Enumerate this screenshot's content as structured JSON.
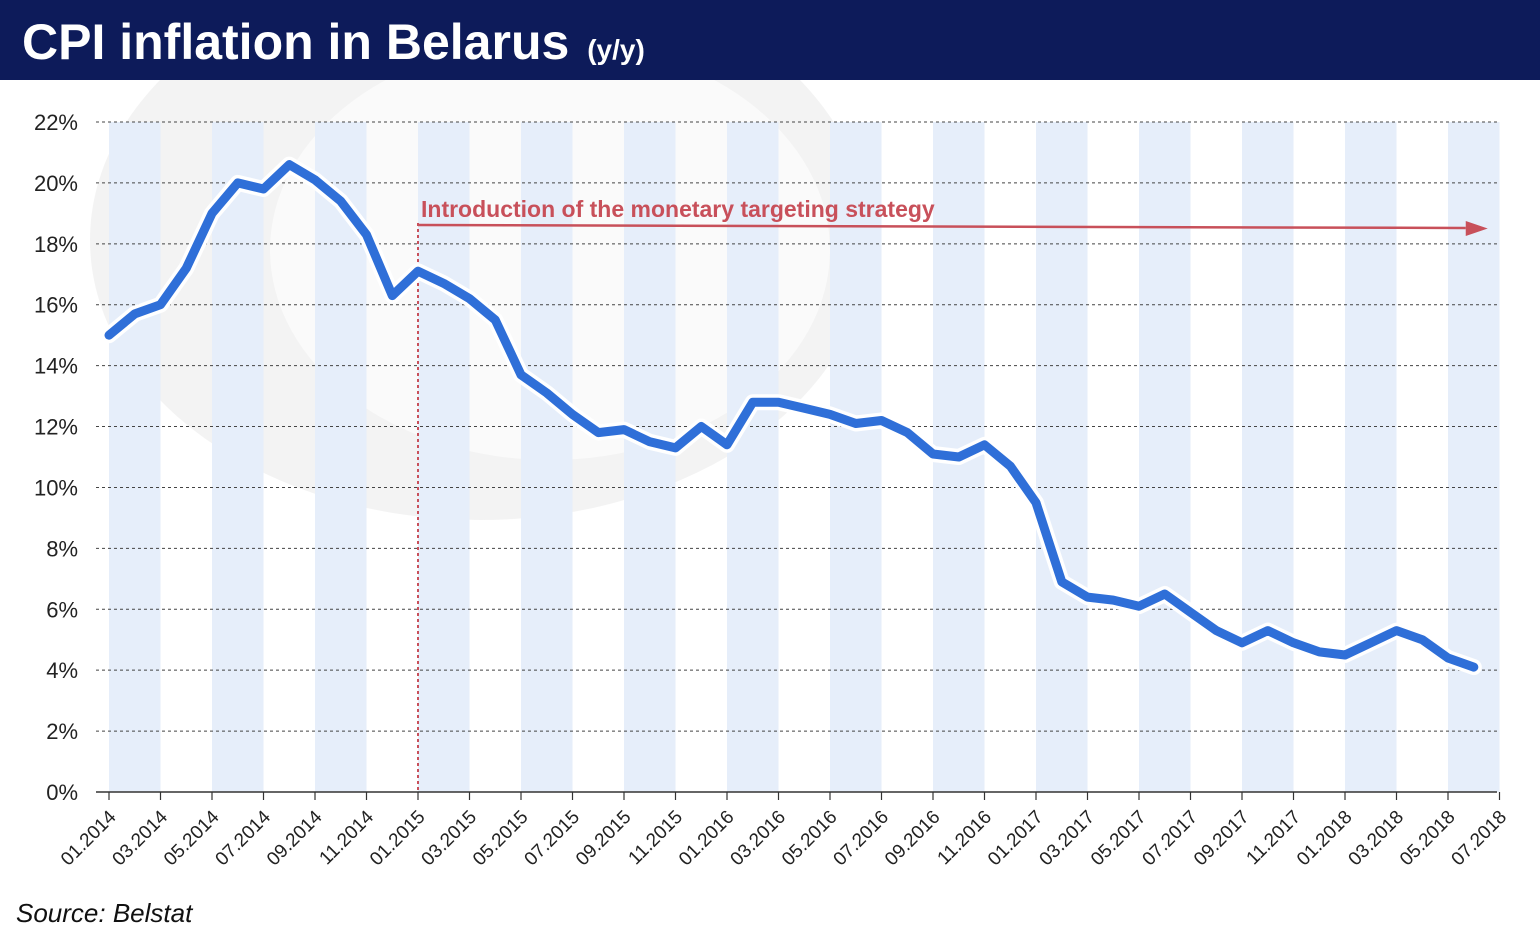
{
  "header": {
    "title": "CPI inflation in Belarus",
    "subtitle": "(y/y)"
  },
  "source": "Source: Belstat",
  "colors": {
    "header_bg": "#0d1b5a",
    "line": "#2f6fd8",
    "annotation": "#c8505a",
    "band": "#e6eefa"
  },
  "chart_data": {
    "type": "line",
    "title": "CPI inflation in Belarus",
    "subtitle": "(y/y)",
    "xlabel": "",
    "ylabel": "",
    "ylim": [
      0,
      22
    ],
    "y_ticks": [
      "0%",
      "2%",
      "4%",
      "6%",
      "8%",
      "10%",
      "12%",
      "14%",
      "16%",
      "18%",
      "20%",
      "22%"
    ],
    "x_tick_labels": [
      "01.2014",
      "03.2014",
      "05.2014",
      "07.2014",
      "09.2014",
      "11.2014",
      "01.2015",
      "03.2015",
      "05.2015",
      "07.2015",
      "09.2015",
      "11.2015",
      "01.2016",
      "03.2016",
      "05.2016",
      "07.2016",
      "09.2016",
      "11.2016",
      "01.2017",
      "03.2017",
      "05.2017",
      "07.2017",
      "09.2017",
      "11.2017",
      "01.2018",
      "03.2018",
      "05.2018",
      "07.2018"
    ],
    "grid": "horizontal dashed",
    "series": [
      {
        "values": [
          15.0,
          15.7,
          16.0,
          17.2,
          19.0,
          20.0,
          19.8,
          20.6,
          20.1,
          19.4,
          18.3,
          16.3,
          17.1,
          16.7,
          16.2,
          15.5,
          13.7,
          13.1,
          12.4,
          11.8,
          11.9,
          11.5,
          11.3,
          12.0,
          11.4,
          12.8,
          12.8,
          12.6,
          12.4,
          12.1,
          12.2,
          11.8,
          11.1,
          11.0,
          11.4,
          10.7,
          9.5,
          6.9,
          6.4,
          6.3,
          6.1,
          6.5,
          5.9,
          5.3,
          4.9,
          5.3,
          4.9,
          4.6,
          4.5,
          4.9,
          5.3,
          5.0,
          4.4,
          4.1
        ]
      }
    ],
    "annotations": [
      {
        "text": "Introduction of the monetary targeting strategy",
        "x": "01.2015"
      }
    ]
  }
}
